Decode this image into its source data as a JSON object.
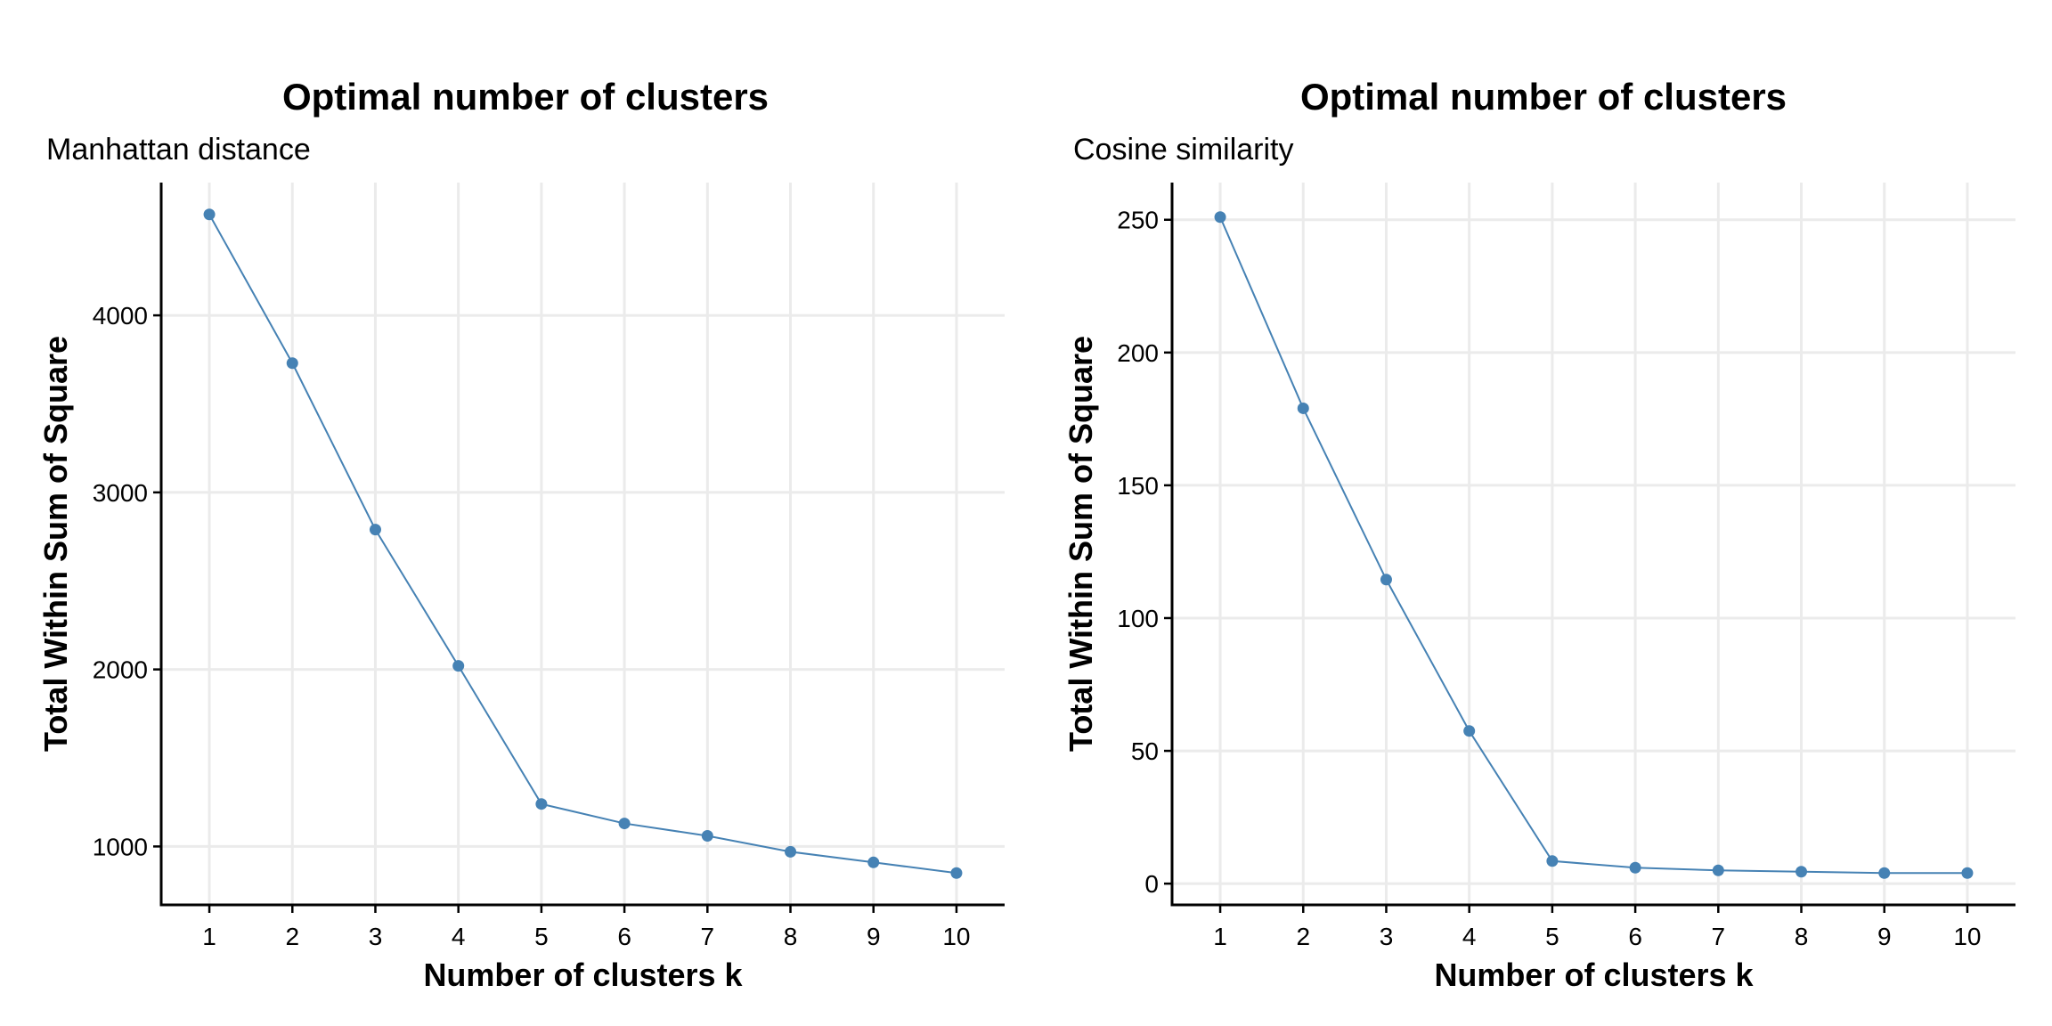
{
  "chart_data": [
    {
      "type": "line",
      "title": "Optimal number of clusters",
      "subtitle": "Manhattan distance",
      "xlabel": "Number of clusters k",
      "ylabel": "Total Within Sum of Square",
      "x": [
        1,
        2,
        3,
        4,
        5,
        6,
        7,
        8,
        9,
        10
      ],
      "series": [
        {
          "values": [
            4570,
            3730,
            2790,
            2020,
            1240,
            1130,
            1060,
            970,
            910,
            850
          ]
        }
      ],
      "xlim": [
        0.42,
        10.58
      ],
      "ylim": [
        670,
        4750
      ],
      "yticks": [
        1000,
        2000,
        3000,
        4000
      ],
      "xticks": [
        1,
        2,
        3,
        4,
        5,
        6,
        7,
        8,
        9,
        10
      ],
      "grid": true,
      "color": "#4682B4"
    },
    {
      "type": "line",
      "title": "Optimal number of clusters",
      "subtitle": "Cosine similarity",
      "xlabel": "Number of clusters k",
      "ylabel": "Total Within Sum of Square",
      "x": [
        1,
        2,
        3,
        4,
        5,
        6,
        7,
        8,
        9,
        10
      ],
      "series": [
        {
          "values": [
            251,
            179,
            114.5,
            57.5,
            8.5,
            6.0,
            5.0,
            4.5,
            4.0,
            4.0
          ]
        }
      ],
      "xlim": [
        0.42,
        10.58
      ],
      "ylim": [
        -8,
        264
      ],
      "yticks": [
        0,
        50,
        100,
        150,
        200,
        250
      ],
      "xticks": [
        1,
        2,
        3,
        4,
        5,
        6,
        7,
        8,
        9,
        10
      ],
      "grid": true,
      "color": "#4682B4"
    }
  ]
}
